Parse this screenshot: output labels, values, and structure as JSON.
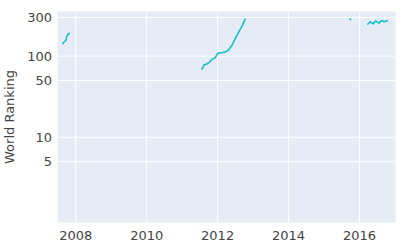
{
  "chart_data": {
    "type": "line",
    "y_label": "World Ranking",
    "x": [
      2007.63,
      2007.67,
      2007.72,
      2007.75,
      2007.8,
      2007.84,
      null,
      2011.55,
      2011.62,
      2011.7,
      2011.78,
      2011.85,
      2011.93,
      2012.0,
      2012.1,
      2012.2,
      2012.3,
      2012.4,
      2012.5,
      2012.6,
      2012.7,
      2012.78,
      null,
      2015.72,
      2015.76,
      null,
      2016.22,
      2016.3,
      2016.38,
      2016.45,
      2016.55,
      2016.62,
      2016.7,
      2016.8
    ],
    "series": [
      {
        "color": "#17becf",
        "values": [
          140,
          150,
          155,
          175,
          190,
          190,
          null,
          68,
          78,
          80,
          85,
          92,
          95,
          108,
          110,
          112,
          118,
          135,
          165,
          200,
          240,
          290,
          null,
          280,
          290,
          null,
          245,
          265,
          250,
          270,
          255,
          275,
          265,
          275
        ]
      }
    ],
    "xlim": [
      2007.5,
      2017.0
    ],
    "xticks": [
      2008,
      2010,
      2012,
      2014,
      2016
    ],
    "ylim": [
      0.9,
      350
    ],
    "yticks": [
      5,
      10,
      50,
      100,
      300
    ],
    "log": "y",
    "grid": true
  }
}
